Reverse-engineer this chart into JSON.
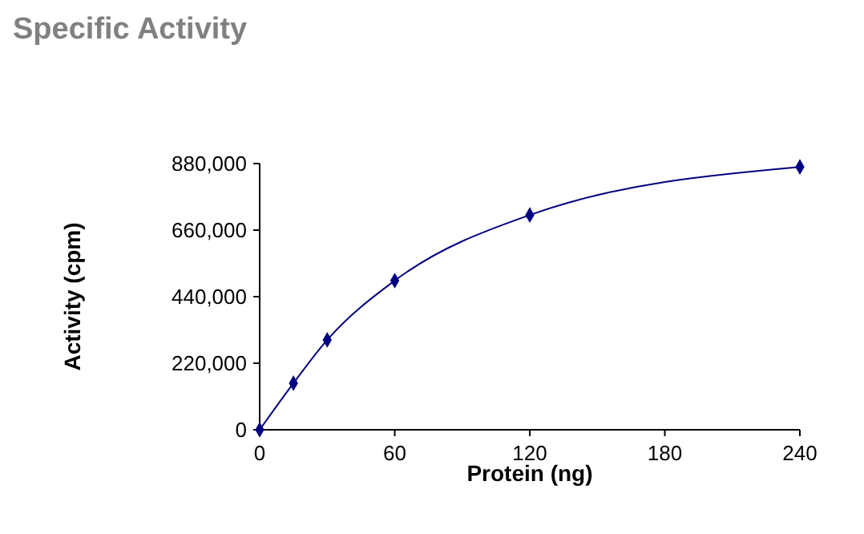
{
  "chart_data": {
    "type": "line",
    "title": "Specific Activity",
    "xlabel": "Protein (ng)",
    "ylabel": "Activity (cpm)",
    "x": [
      0,
      15,
      30,
      60,
      120,
      240
    ],
    "series": [
      {
        "color": "#000080",
        "values": [
          0,
          154000,
          297000,
          493000,
          710000,
          869000
        ]
      }
    ],
    "xlim": [
      0,
      240
    ],
    "xticks": [
      0,
      60,
      120,
      180,
      240
    ],
    "ylim": [
      0,
      880000
    ],
    "yticks": [
      {
        "value": 0,
        "label": "0"
      },
      {
        "value": 220000,
        "label": "220,000"
      },
      {
        "value": 440000,
        "label": "440,000"
      },
      {
        "value": 660000,
        "label": "660,000"
      },
      {
        "value": 880000,
        "label": "880,000"
      }
    ],
    "grid": false,
    "marker": "diamond",
    "line_style": "solid"
  }
}
